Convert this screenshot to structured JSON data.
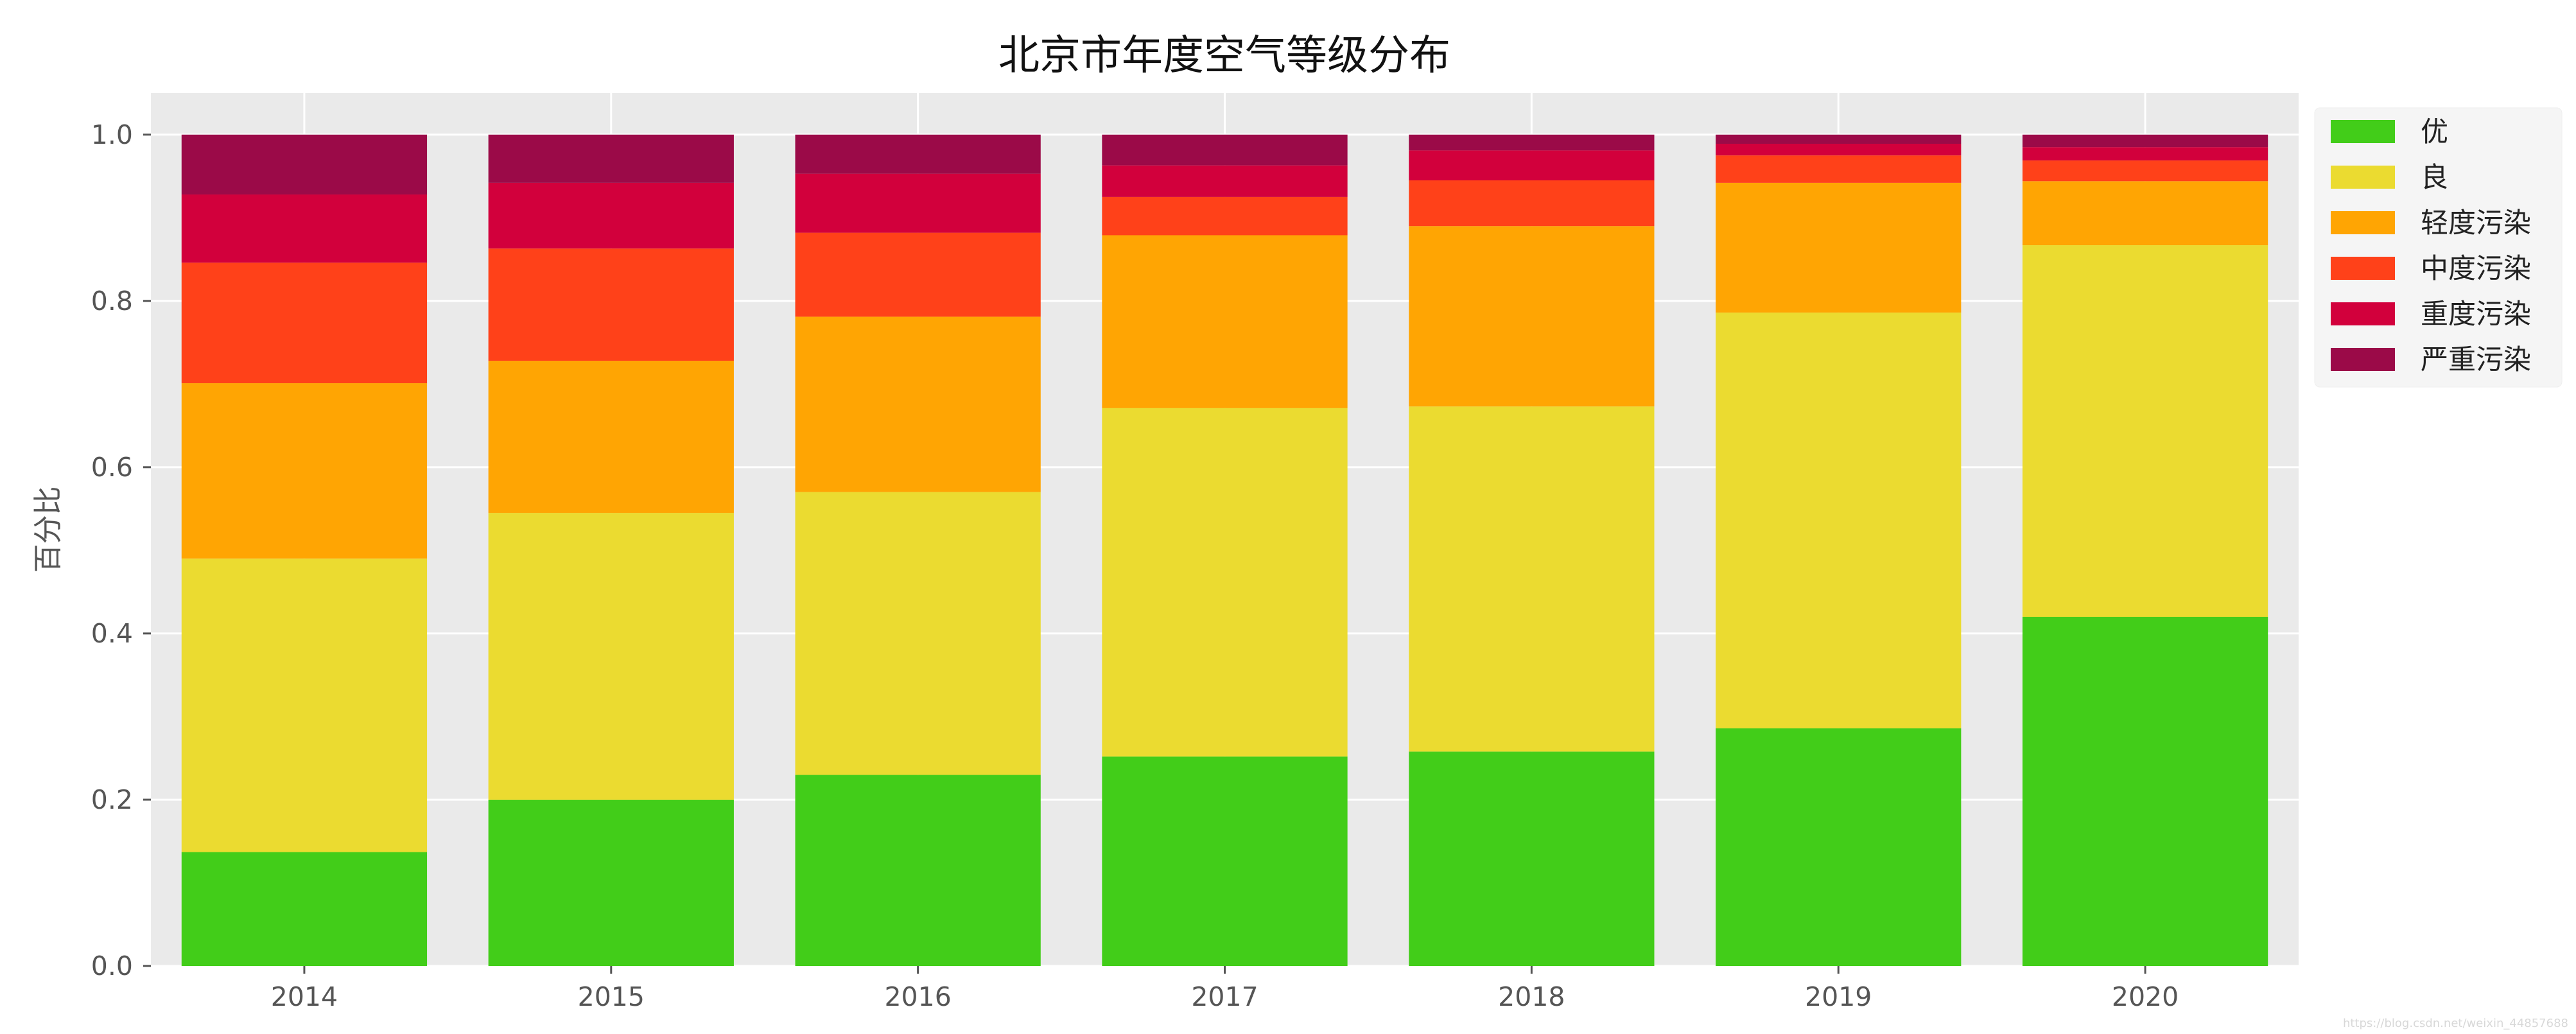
{
  "chart_data": {
    "type": "bar",
    "stacked": true,
    "title": "北京市年度空气等级分布",
    "xlabel": "",
    "ylabel": "百分比",
    "ylim": [
      0,
      1.05
    ],
    "yticks": [
      "0.0",
      "0.2",
      "0.4",
      "0.6",
      "0.8",
      "1.0"
    ],
    "categories": [
      "2014",
      "2015",
      "2016",
      "2017",
      "2018",
      "2019",
      "2020"
    ],
    "grid": true,
    "legend_position": "top-right-outside",
    "series": [
      {
        "name": "优",
        "color": "#42cd19",
        "values": [
          0.137,
          0.2,
          0.23,
          0.252,
          0.258,
          0.286,
          0.42
        ]
      },
      {
        "name": "良",
        "color": "#ebdb30",
        "values": [
          0.353,
          0.345,
          0.34,
          0.419,
          0.415,
          0.5,
          0.447
        ]
      },
      {
        "name": "轻度污染",
        "color": "#ffa503",
        "values": [
          0.211,
          0.183,
          0.211,
          0.208,
          0.217,
          0.156,
          0.077
        ]
      },
      {
        "name": "中度污染",
        "color": "#ff4119",
        "values": [
          0.145,
          0.135,
          0.101,
          0.046,
          0.055,
          0.033,
          0.025
        ]
      },
      {
        "name": "重度污染",
        "color": "#d2003c",
        "values": [
          0.082,
          0.079,
          0.071,
          0.038,
          0.036,
          0.014,
          0.016
        ]
      },
      {
        "name": "严重污染",
        "color": "#9b0a48",
        "values": [
          0.072,
          0.058,
          0.047,
          0.037,
          0.019,
          0.011,
          0.015
        ]
      }
    ],
    "watermark": "https://blog.csdn.net/weixin_44857688"
  }
}
